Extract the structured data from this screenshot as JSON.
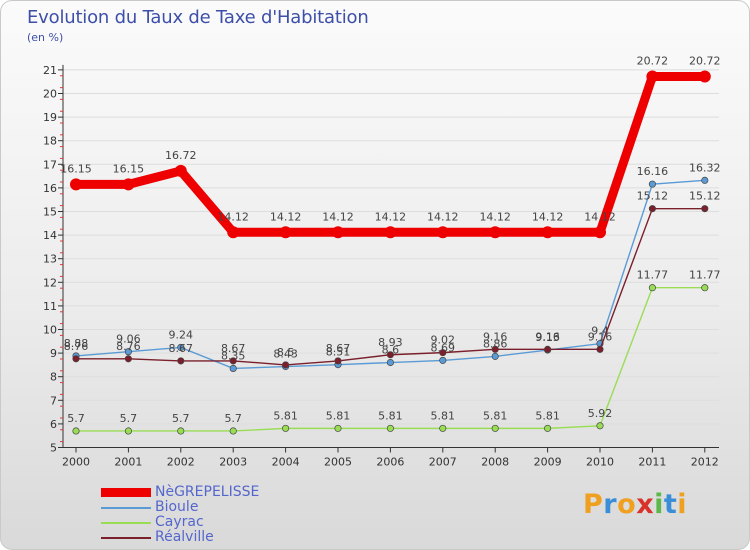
{
  "colors": {
    "text": "#3d4fa8",
    "axis": "#333333",
    "grid": "#dddddd"
  },
  "logo": {
    "letters": [
      "P",
      "r",
      "o",
      "x",
      "i",
      "t",
      "i"
    ]
  },
  "chart_data": {
    "type": "line",
    "title": "Evolution du Taux de Taxe d'Habitation",
    "ylabel": "(en %)",
    "xlabel": "",
    "ylim": [
      5,
      21
    ],
    "yticks": [
      "5",
      "6",
      "7",
      "8",
      "9",
      "10",
      "11",
      "12",
      "13",
      "14",
      "15",
      "16",
      "17",
      "18",
      "19",
      "20",
      "21"
    ],
    "categories": [
      "2000",
      "2001",
      "2002",
      "2003",
      "2004",
      "2005",
      "2006",
      "2007",
      "2008",
      "2009",
      "2010",
      "2011",
      "2012"
    ],
    "series": [
      {
        "name": "NèGREPELISSE",
        "color": "#ee0000",
        "role": "main",
        "values": [
          16.15,
          16.15,
          16.72,
          14.12,
          14.12,
          14.12,
          14.12,
          14.12,
          14.12,
          14.12,
          14.12,
          20.72,
          20.72
        ],
        "labels": [
          "16.15",
          "16.15",
          "16.72",
          "14.12",
          "14.12",
          "14.12",
          "14.12",
          "14.12",
          "14.12",
          "14.12",
          "14.12",
          "20.72",
          "20.72"
        ]
      },
      {
        "name": "Bioule",
        "color": "#5b9bd5",
        "role": "minor",
        "values": [
          8.88,
          9.06,
          9.24,
          8.35,
          8.43,
          8.51,
          8.6,
          8.69,
          8.86,
          9.13,
          9.4,
          16.16,
          16.32
        ],
        "labels": [
          "8.88",
          "9.06",
          "9.24",
          "8.35",
          "8.43",
          "8.51",
          "8.6",
          "8.69",
          "8.86",
          "9.13",
          "9.4",
          "16.16",
          "16.32"
        ]
      },
      {
        "name": "Cayrac",
        "color": "#99dd55",
        "role": "minor",
        "values": [
          5.7,
          5.7,
          5.7,
          5.7,
          5.81,
          5.81,
          5.81,
          5.81,
          5.81,
          5.81,
          5.92,
          11.77,
          11.77
        ],
        "labels": [
          "5.7",
          "5.7",
          "5.7",
          "5.7",
          "5.81",
          "5.81",
          "5.81",
          "5.81",
          "5.81",
          "5.81",
          "5.92",
          "11.77",
          "11.77"
        ]
      },
      {
        "name": "Réalville",
        "color": "#7a1f2b",
        "role": "minor",
        "values": [
          8.76,
          8.76,
          8.67,
          8.67,
          8.5,
          8.67,
          8.93,
          9.02,
          9.16,
          9.16,
          9.16,
          15.12,
          15.12
        ],
        "labels": [
          "8.76",
          "8.76",
          "8.67",
          "8.67",
          "8.5",
          "8.67",
          "8.93",
          "9.02",
          "9.16",
          "9.16",
          "9.16",
          "15.12",
          "15.12"
        ]
      }
    ]
  }
}
